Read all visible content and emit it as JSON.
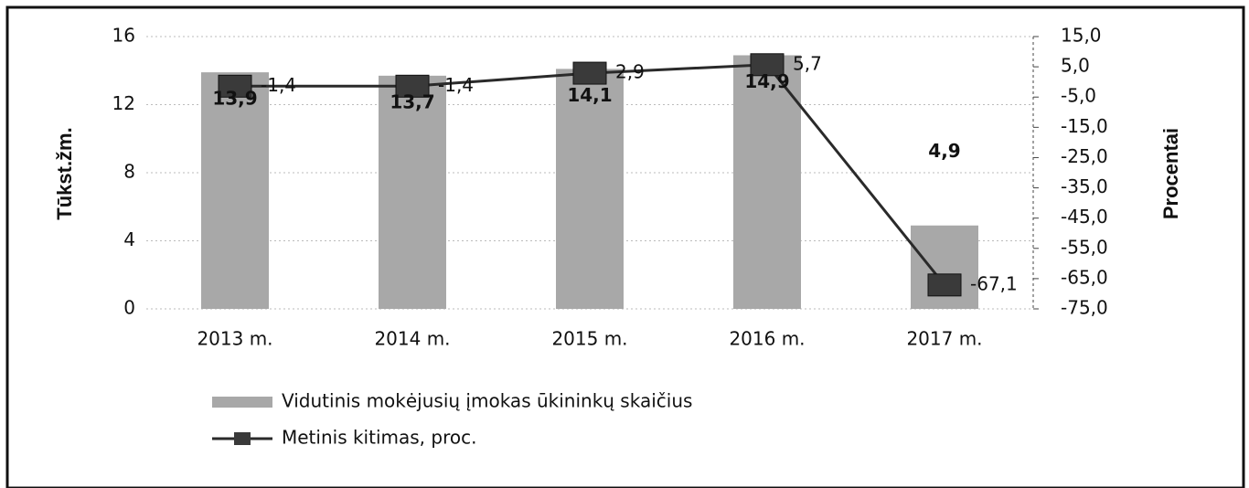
{
  "chart_data": {
    "type": "combo",
    "categories": [
      "2013 m.",
      "2014 m.",
      "2015 m.",
      "2016 m.",
      "2017 m."
    ],
    "y_label": "Tūkst.žm.",
    "y2_label": "Procentai",
    "ylim": [
      0,
      16
    ],
    "yticks": [
      0,
      4,
      8,
      12,
      16
    ],
    "y2lim": [
      -75,
      15
    ],
    "y2ticks": [
      {
        "value": -75,
        "label": "-75,0"
      },
      {
        "value": -65,
        "label": "-65,0"
      },
      {
        "value": -55,
        "label": "-55,0"
      },
      {
        "value": -45,
        "label": "-45,0"
      },
      {
        "value": -35,
        "label": "-35,0"
      },
      {
        "value": -25,
        "label": "-25,0"
      },
      {
        "value": -15,
        "label": "-15,0"
      },
      {
        "value": -5,
        "label": "-5,0"
      },
      {
        "value": 5,
        "label": "5,0"
      },
      {
        "value": 15,
        "label": "15,0"
      }
    ],
    "grid": true,
    "legend": "bottom",
    "series": [
      {
        "name": "Vidutinis mokėjusių įmokas ūkininkų skaičius",
        "type": "bar",
        "color": "#a8a8a8",
        "values": [
          13.9,
          13.7,
          14.1,
          14.9,
          4.9
        ],
        "value_labels": [
          "13,9",
          "13,7",
          "14,1",
          "14,9",
          "4,9"
        ]
      },
      {
        "name": "Metinis kitimas, proc.",
        "type": "line",
        "axis": "y2",
        "color": "#2a2a2a",
        "values": [
          -1.4,
          -1.4,
          2.9,
          5.7,
          -67.1
        ],
        "value_labels": [
          "-1,4",
          "-1,4",
          "2,9",
          "5,7",
          "-67,1"
        ]
      }
    ]
  }
}
